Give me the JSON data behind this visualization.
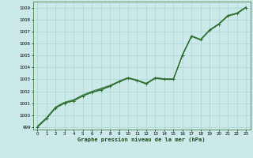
{
  "title": "",
  "xlabel": "Graphe pression niveau de la mer (hPa)",
  "ylabel": "",
  "bg_color": "#cce9e9",
  "grid_color": "#aad4d4",
  "line_color": "#2d6e2d",
  "xlim": [
    -0.5,
    23.5
  ],
  "ylim": [
    998.8,
    1009.5
  ],
  "xticks": [
    0,
    1,
    2,
    3,
    4,
    5,
    6,
    7,
    8,
    9,
    10,
    11,
    12,
    13,
    14,
    15,
    16,
    17,
    18,
    19,
    20,
    21,
    22,
    23
  ],
  "yticks": [
    999,
    1000,
    1001,
    1002,
    1003,
    1004,
    1005,
    1006,
    1007,
    1008,
    1009
  ],
  "series_main": {
    "x": [
      0,
      1,
      2,
      3,
      4,
      5,
      6,
      7,
      8,
      9,
      10,
      11,
      12,
      13,
      14,
      15,
      16,
      17,
      18,
      19,
      20,
      21,
      22,
      23
    ],
    "y": [
      999.0,
      999.7,
      1000.6,
      1001.0,
      1001.2,
      1001.6,
      1001.9,
      1002.1,
      1002.4,
      1002.8,
      1003.1,
      1002.9,
      1002.6,
      1003.1,
      1003.0,
      1003.0,
      1005.0,
      1006.6,
      1006.3,
      1007.1,
      1007.6,
      1008.3,
      1008.5,
      1009.0
    ]
  },
  "series_offsets": [
    [
      999.0,
      999.7,
      1000.6,
      1001.0,
      1001.2,
      1001.6,
      1001.9,
      1002.2,
      1002.45,
      1002.82,
      1003.12,
      1002.92,
      1002.65,
      1003.12,
      1003.02,
      1003.02,
      1005.05,
      1006.62,
      1006.32,
      1007.12,
      1007.62,
      1008.32,
      1008.52,
      1009.02
    ],
    [
      999.05,
      999.75,
      1000.65,
      1001.05,
      1001.25,
      1001.65,
      1001.95,
      1002.15,
      1002.42,
      1002.78,
      1003.08,
      1002.88,
      1002.62,
      1003.08,
      1002.98,
      1002.98,
      1005.02,
      1006.58,
      1006.28,
      1007.08,
      1007.58,
      1008.28,
      1008.48,
      1008.98
    ],
    [
      999.1,
      999.8,
      1000.7,
      1001.1,
      1001.3,
      1001.7,
      1002.0,
      1002.25,
      1002.5,
      1002.85,
      1003.15,
      1002.95,
      1002.68,
      1003.15,
      1003.05,
      1003.05,
      1005.08,
      1006.65,
      1006.35,
      1007.15,
      1007.65,
      1008.35,
      1008.55,
      1009.05
    ]
  ]
}
